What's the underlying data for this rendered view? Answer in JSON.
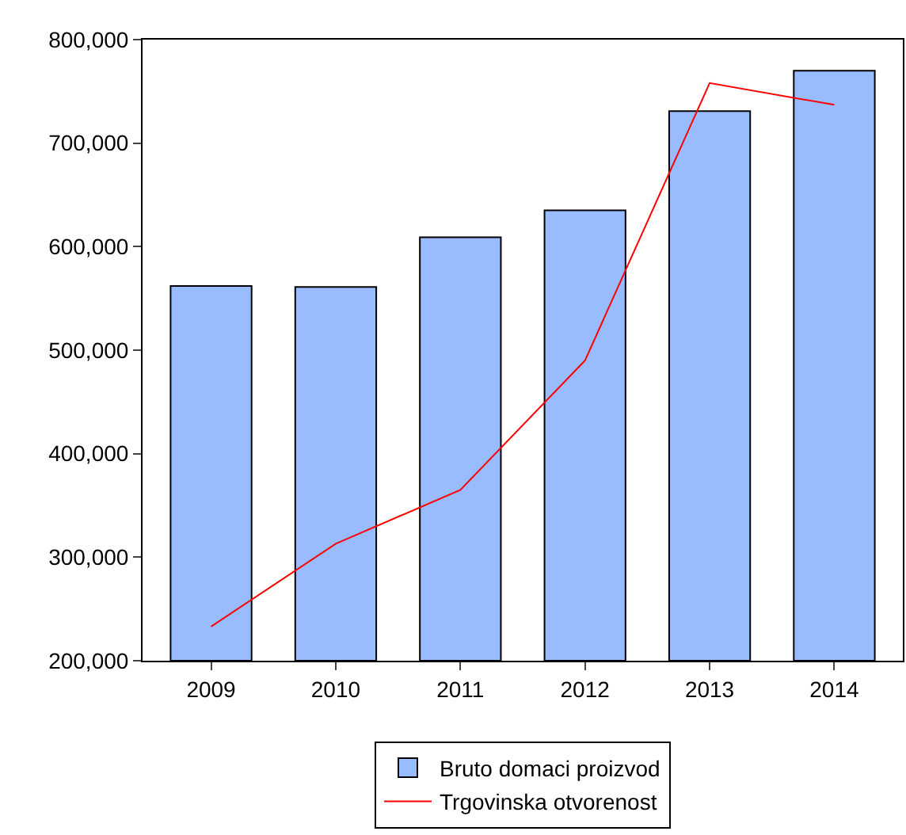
{
  "chart_data": {
    "type": "bar",
    "categories": [
      "2009",
      "2010",
      "2011",
      "2012",
      "2013",
      "2014"
    ],
    "series": [
      {
        "name": "Bruto domaci proizvod",
        "color": "#99bbff",
        "values": [
          562000,
          561000,
          609000,
          635000,
          731000,
          770000
        ]
      },
      {
        "name": "Trgovinska otvorenost",
        "color": "#ff0000",
        "type": "line",
        "values": [
          233000,
          313000,
          365000,
          490000,
          758000,
          737000
        ]
      }
    ],
    "ylim": [
      200000,
      800000
    ],
    "yticks": [
      {
        "value": 200000,
        "label": "200,000"
      },
      {
        "value": 300000,
        "label": "300,000"
      },
      {
        "value": 400000,
        "label": "400,000"
      },
      {
        "value": 500000,
        "label": "500,000"
      },
      {
        "value": 600000,
        "label": "600,000"
      },
      {
        "value": 700000,
        "label": "700,000"
      },
      {
        "value": 800000,
        "label": "800,000"
      }
    ],
    "grid": false,
    "legend": "bottom",
    "marker": "none",
    "line_style": "solid"
  }
}
